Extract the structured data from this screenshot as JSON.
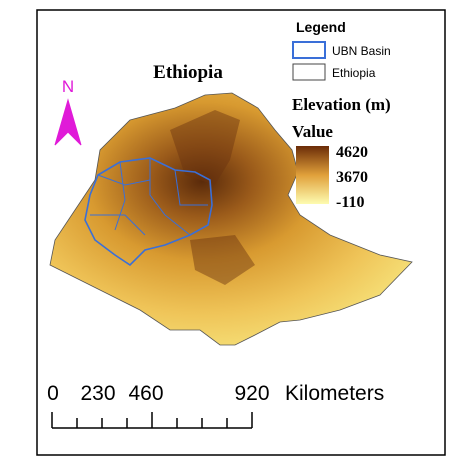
{
  "map": {
    "title": "Ethiopia",
    "north": "N",
    "legend": {
      "title": "Legend",
      "items": [
        "UBN Basin",
        "Ethiopia"
      ]
    },
    "elevation": {
      "title": "Elevation (m)",
      "subtitle": "Value",
      "max": 4620,
      "mid": 3670,
      "min": -110
    },
    "scale_bar": {
      "ticks": [
        0,
        230,
        460,
        920
      ],
      "unit": "Kilometers"
    }
  }
}
